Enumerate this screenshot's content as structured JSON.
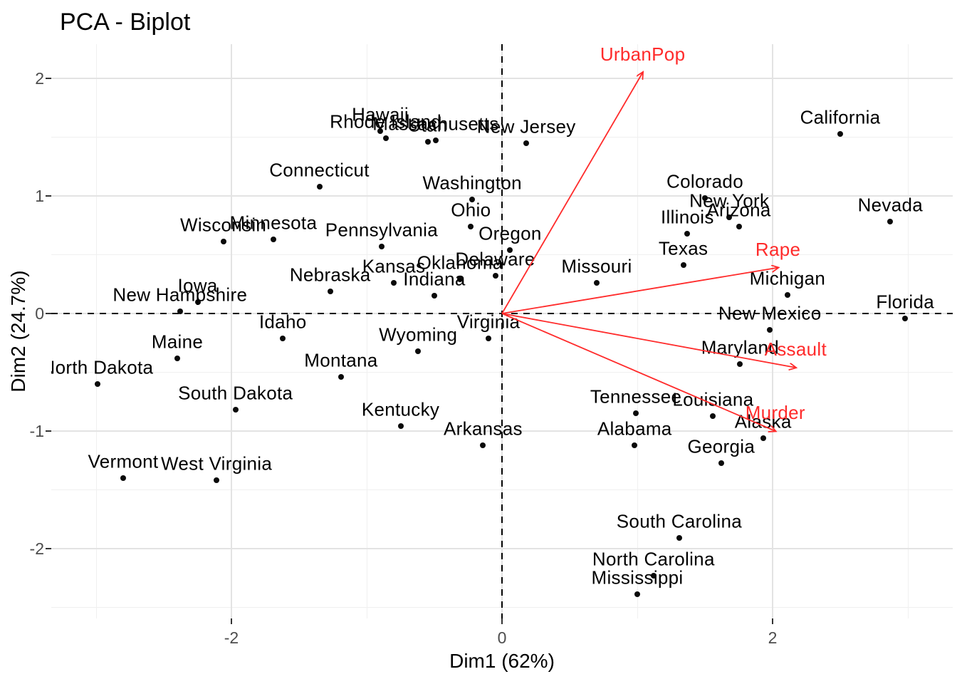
{
  "figure": {
    "title": "PCA - Biplot"
  },
  "colors": {
    "background": "#FFFFFF",
    "point": "#0A0A0A",
    "state_label": "#000000",
    "arrow_red": "#FF2B2B",
    "tick_label": "#4D4D4D",
    "axis_text": "#000000",
    "grid_major": "#E3E3E3",
    "grid_minor": "#F0F0F0",
    "zero_line": "#000000"
  },
  "chart_data": {
    "type": "scatter",
    "title": "PCA - Biplot",
    "xlabel": "Dim1 (62%)",
    "ylabel": "Dim2 (24.7%)",
    "xlim": [
      -3.33,
      3.33
    ],
    "ylim": [
      -2.62,
      2.29
    ],
    "grid": true,
    "x_ticks": [
      -2,
      0,
      2
    ],
    "y_ticks": [
      2,
      1,
      0,
      -1,
      -2
    ],
    "x_minor_gridlines": [
      -3,
      -1,
      1,
      3
    ],
    "y_minor_gridlines": [
      1.5,
      0.5,
      -0.5,
      -1.5,
      -2.5
    ],
    "zero_lines_dashed": true,
    "points": [
      {
        "label": "Alabama",
        "x": 0.98,
        "y": -1.12
      },
      {
        "label": "Alaska",
        "x": 1.93,
        "y": -1.06
      },
      {
        "label": "Arizona",
        "x": 1.75,
        "y": 0.74
      },
      {
        "label": "Arkansas",
        "x": -0.14,
        "y": -1.12
      },
      {
        "label": "California",
        "x": 2.5,
        "y": 1.53
      },
      {
        "label": "Colorado",
        "x": 1.5,
        "y": 0.98
      },
      {
        "label": "Connecticut",
        "x": -1.35,
        "y": 1.08
      },
      {
        "label": "Delaware",
        "x": -0.05,
        "y": 0.32
      },
      {
        "label": "Florida",
        "x": 2.98,
        "y": -0.04
      },
      {
        "label": "Georgia",
        "x": 1.62,
        "y": -1.27
      },
      {
        "label": "Hawaii",
        "x": -0.9,
        "y": 1.55
      },
      {
        "label": "Idaho",
        "x": -1.62,
        "y": -0.21
      },
      {
        "label": "Illinois",
        "x": 1.37,
        "y": 0.68
      },
      {
        "label": "Indiana",
        "x": -0.5,
        "y": 0.15
      },
      {
        "label": "Iowa",
        "x": -2.25,
        "y": 0.1
      },
      {
        "label": "Kansas",
        "x": -0.8,
        "y": 0.26
      },
      {
        "label": "Kentucky",
        "x": -0.75,
        "y": -0.96
      },
      {
        "label": "Louisiana",
        "x": 1.56,
        "y": -0.87
      },
      {
        "label": "Maine",
        "x": -2.4,
        "y": -0.38
      },
      {
        "label": "Maryland",
        "x": 1.76,
        "y": -0.43
      },
      {
        "label": "Massachusetts",
        "x": -0.49,
        "y": 1.47
      },
      {
        "label": "Michigan",
        "x": 2.11,
        "y": 0.16
      },
      {
        "label": "Minnesota",
        "x": -1.69,
        "y": 0.63
      },
      {
        "label": "Mississippi",
        "x": 1.0,
        "y": -2.39
      },
      {
        "label": "Missouri",
        "x": 0.7,
        "y": 0.26
      },
      {
        "label": "Montana",
        "x": -1.19,
        "y": -0.54
      },
      {
        "label": "Nebraska",
        "x": -1.27,
        "y": 0.19
      },
      {
        "label": "Nevada",
        "x": 2.87,
        "y": 0.78
      },
      {
        "label": "New Hampshire",
        "x": -2.38,
        "y": 0.02
      },
      {
        "label": "New Jersey",
        "x": 0.18,
        "y": 1.45
      },
      {
        "label": "New Mexico",
        "x": 1.98,
        "y": -0.14
      },
      {
        "label": "New York",
        "x": 1.68,
        "y": 0.82
      },
      {
        "label": "North Carolina",
        "x": 1.12,
        "y": -2.23
      },
      {
        "label": "North Dakota",
        "x": -2.99,
        "y": -0.6
      },
      {
        "label": "Ohio",
        "x": -0.23,
        "y": 0.74
      },
      {
        "label": "Oklahoma",
        "x": -0.31,
        "y": 0.29
      },
      {
        "label": "Oregon",
        "x": 0.06,
        "y": 0.54
      },
      {
        "label": "Pennsylvania",
        "x": -0.89,
        "y": 0.57
      },
      {
        "label": "Rhode Island",
        "x": -0.86,
        "y": 1.49
      },
      {
        "label": "South Carolina",
        "x": 1.31,
        "y": -1.91
      },
      {
        "label": "South Dakota",
        "x": -1.97,
        "y": -0.82
      },
      {
        "label": "Tennessee",
        "x": 0.99,
        "y": -0.85
      },
      {
        "label": "Texas",
        "x": 1.34,
        "y": 0.41
      },
      {
        "label": "Utah",
        "x": -0.55,
        "y": 1.46
      },
      {
        "label": "Vermont",
        "x": -2.8,
        "y": -1.4
      },
      {
        "label": "Virginia",
        "x": -0.1,
        "y": -0.21
      },
      {
        "label": "Washington",
        "x": -0.22,
        "y": 0.97
      },
      {
        "label": "West Virginia",
        "x": -2.11,
        "y": -1.42
      },
      {
        "label": "Wisconsin",
        "x": -2.06,
        "y": 0.61
      },
      {
        "label": "Wyoming",
        "x": -0.62,
        "y": -0.32
      }
    ],
    "arrows": [
      {
        "label": "UrbanPop",
        "x": 1.04,
        "y": 2.05
      },
      {
        "label": "Rape",
        "x": 2.04,
        "y": 0.39
      },
      {
        "label": "Assault",
        "x": 2.17,
        "y": -0.46
      },
      {
        "label": "Murder",
        "x": 2.02,
        "y": -1.0
      }
    ],
    "arrow_origin": {
      "x": 0,
      "y": 0
    },
    "legend": "none"
  }
}
